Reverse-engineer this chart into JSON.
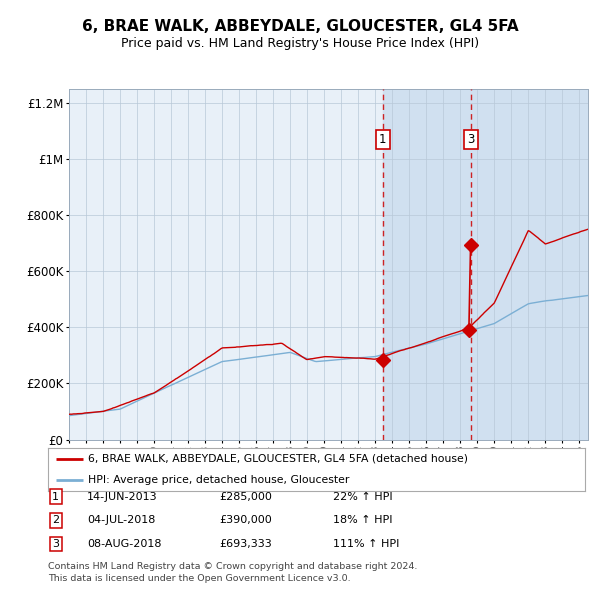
{
  "title": "6, BRAE WALK, ABBEYDALE, GLOUCESTER, GL4 5FA",
  "subtitle": "Price paid vs. HM Land Registry's House Price Index (HPI)",
  "title_fontsize": 11,
  "subtitle_fontsize": 9,
  "hpi_color": "#7bafd4",
  "price_color": "#cc0000",
  "plot_bg": "#e8f0f8",
  "span_bg": "#d0e0f0",
  "ylim": [
    0,
    1250000
  ],
  "yticks": [
    0,
    200000,
    400000,
    600000,
    800000,
    1000000,
    1200000
  ],
  "ytick_labels": [
    "£0",
    "£200K",
    "£400K",
    "£600K",
    "£800K",
    "£1M",
    "£1.2M"
  ],
  "transactions": [
    {
      "num": 1,
      "date_label": "14-JUN-2013",
      "price": 285000,
      "pct": "22%",
      "x_year": 2013.44
    },
    {
      "num": 2,
      "date_label": "04-JUL-2018",
      "price": 390000,
      "pct": "18%",
      "x_year": 2018.5
    },
    {
      "num": 3,
      "date_label": "08-AUG-2018",
      "price": 693333,
      "pct": "111%",
      "x_year": 2018.6
    }
  ],
  "vline_transactions": [
    1,
    3
  ],
  "legend_line1": "6, BRAE WALK, ABBEYDALE, GLOUCESTER, GL4 5FA (detached house)",
  "legend_line2": "HPI: Average price, detached house, Gloucester",
  "footnote1": "Contains HM Land Registry data © Crown copyright and database right 2024.",
  "footnote2": "This data is licensed under the Open Government Licence v3.0.",
  "xmin": 1995.0,
  "xmax": 2025.5
}
